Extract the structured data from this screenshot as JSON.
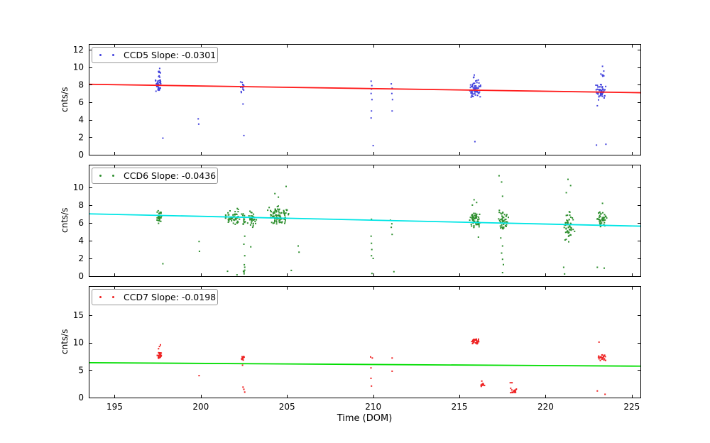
{
  "figure": {
    "background": "#ffffff",
    "axis_color": "#000000",
    "tick_label_color": "#000000"
  },
  "chart_data": {
    "type": "scatter",
    "title": "",
    "xlabel": "Time (DOM)",
    "xlim": [
      193.5,
      225.5
    ],
    "xticks": [
      195,
      200,
      205,
      210,
      215,
      220,
      225
    ],
    "grid": false,
    "legend_position": "upper left",
    "subplots": [
      {
        "name": "CCD5",
        "legend_label": "CCD5 Slope: -0.0301",
        "slope": -0.0301,
        "ylabel": "cnts/s",
        "ylim": [
          0,
          12.65
        ],
        "yticks": [
          0,
          2,
          4,
          6,
          8,
          10,
          12
        ],
        "marker_color": "#4444dd",
        "line_color": "#ff1a1a",
        "trend_line": {
          "x": [
            193.5,
            225.5
          ],
          "y": [
            8.05,
            7.09
          ]
        },
        "clusters": [
          {
            "x": 197.55,
            "xr": 0.18,
            "y": 7.9,
            "yr": 0.8,
            "n": 38
          },
          {
            "x": 197.58,
            "xr": 0.1,
            "y": 9.5,
            "yr": 0.9,
            "n": 11
          },
          {
            "x": 202.42,
            "xr": 0.14,
            "y": 7.7,
            "yr": 0.75,
            "n": 13
          },
          {
            "x": 215.93,
            "xr": 0.33,
            "y": 7.4,
            "yr": 1.0,
            "n": 62
          },
          {
            "x": 215.95,
            "xr": 0.2,
            "y": 8.8,
            "yr": 0.45,
            "n": 6
          },
          {
            "x": 223.2,
            "xr": 0.36,
            "y": 7.2,
            "yr": 1.1,
            "n": 55
          },
          {
            "x": 223.3,
            "xr": 0.16,
            "y": 9.2,
            "yr": 0.6,
            "n": 6
          }
        ],
        "outlier_points": [
          [
            197.8,
            1.9
          ],
          [
            199.85,
            4.1
          ],
          [
            199.88,
            3.5
          ],
          [
            202.45,
            5.8
          ],
          [
            202.5,
            2.2
          ],
          [
            209.88,
            8.4
          ],
          [
            209.92,
            7.9
          ],
          [
            209.9,
            7.5
          ],
          [
            209.88,
            7.0
          ],
          [
            209.93,
            6.3
          ],
          [
            209.9,
            5.0
          ],
          [
            209.88,
            4.2
          ],
          [
            210.0,
            1.05
          ],
          [
            211.05,
            8.1
          ],
          [
            211.1,
            7.6
          ],
          [
            211.08,
            7.0
          ],
          [
            211.12,
            6.3
          ],
          [
            211.1,
            5.0
          ],
          [
            215.9,
            1.5
          ],
          [
            223.3,
            10.1
          ],
          [
            222.95,
            1.1
          ],
          [
            223.5,
            1.2
          ],
          [
            223.0,
            5.6
          ]
        ]
      },
      {
        "name": "CCD6",
        "legend_label": "CCD6 Slope: -0.0436",
        "slope": -0.0436,
        "ylabel": "cnts/s",
        "ylim": [
          0,
          12.55
        ],
        "yticks": [
          0,
          2,
          4,
          6,
          8,
          10
        ],
        "marker_color": "#2f8f2f",
        "line_color": "#00e5e5",
        "trend_line": {
          "x": [
            193.5,
            225.5
          ],
          "y": [
            7.02,
            5.63
          ]
        },
        "clusters": [
          {
            "x": 197.58,
            "xr": 0.15,
            "y": 6.7,
            "yr": 1.0,
            "n": 30
          },
          {
            "x": 201.9,
            "xr": 0.5,
            "y": 6.6,
            "yr": 1.1,
            "n": 55
          },
          {
            "x": 202.5,
            "xr": 0.1,
            "y": 6.5,
            "yr": 0.9,
            "n": 12
          },
          {
            "x": 203.0,
            "xr": 0.3,
            "y": 6.4,
            "yr": 1.0,
            "n": 35
          },
          {
            "x": 204.5,
            "xr": 0.68,
            "y": 6.8,
            "yr": 1.2,
            "n": 90
          },
          {
            "x": 215.9,
            "xr": 0.36,
            "y": 6.3,
            "yr": 1.0,
            "n": 65
          },
          {
            "x": 217.55,
            "xr": 0.33,
            "y": 6.2,
            "yr": 1.3,
            "n": 48
          },
          {
            "x": 221.35,
            "xr": 0.4,
            "y": 5.6,
            "yr": 2.2,
            "n": 55
          },
          {
            "x": 223.25,
            "xr": 0.3,
            "y": 6.4,
            "yr": 0.95,
            "n": 48
          },
          {
            "x": 202.52,
            "xr": 0.07,
            "y": 0.7,
            "yr": 0.6,
            "n": 7
          }
        ],
        "outlier_points": [
          [
            197.8,
            1.4
          ],
          [
            199.9,
            3.9
          ],
          [
            199.92,
            2.8
          ],
          [
            202.55,
            4.5
          ],
          [
            202.5,
            3.6
          ],
          [
            202.55,
            2.3
          ],
          [
            202.9,
            3.3
          ],
          [
            201.55,
            0.55
          ],
          [
            202.1,
            0.15
          ],
          [
            204.95,
            10.1
          ],
          [
            204.5,
            8.9
          ],
          [
            204.3,
            9.3
          ],
          [
            205.65,
            3.4
          ],
          [
            205.7,
            2.7
          ],
          [
            205.25,
            0.65
          ],
          [
            209.9,
            6.4
          ],
          [
            209.88,
            4.5
          ],
          [
            209.9,
            3.7
          ],
          [
            209.92,
            3.0
          ],
          [
            209.9,
            2.3
          ],
          [
            209.93,
            0.3
          ],
          [
            210.0,
            2.0
          ],
          [
            211.0,
            6.3
          ],
          [
            211.08,
            5.9
          ],
          [
            211.05,
            5.5
          ],
          [
            211.1,
            4.7
          ],
          [
            211.2,
            0.5
          ],
          [
            216.0,
            8.3
          ],
          [
            215.75,
            8.0
          ],
          [
            215.85,
            8.6
          ],
          [
            216.1,
            4.4
          ],
          [
            217.3,
            11.3
          ],
          [
            217.45,
            10.6
          ],
          [
            217.5,
            9.0
          ],
          [
            217.4,
            4.3
          ],
          [
            217.5,
            3.4
          ],
          [
            217.45,
            2.6
          ],
          [
            217.5,
            1.9
          ],
          [
            217.55,
            1.3
          ],
          [
            217.5,
            0.4
          ],
          [
            221.3,
            10.9
          ],
          [
            221.45,
            10.2
          ],
          [
            221.2,
            9.4
          ],
          [
            221.05,
            1.0
          ],
          [
            221.1,
            0.25
          ],
          [
            223.3,
            8.2
          ],
          [
            223.0,
            1.0
          ],
          [
            223.4,
            0.9
          ]
        ]
      },
      {
        "name": "CCD7",
        "legend_label": "CCD7 Slope: -0.0198",
        "slope": -0.0198,
        "ylabel": "cnts/s",
        "ylim": [
          0,
          20.3
        ],
        "yticks": [
          0,
          5,
          10,
          15
        ],
        "marker_color": "#ee2222",
        "line_color": "#00dd00",
        "trend_line": {
          "x": [
            193.5,
            225.5
          ],
          "y": [
            6.35,
            5.72
          ]
        },
        "clusters": [
          {
            "x": 197.6,
            "xr": 0.14,
            "y": 7.6,
            "yr": 0.65,
            "n": 26
          },
          {
            "x": 202.45,
            "xr": 0.11,
            "y": 7.25,
            "yr": 0.55,
            "n": 13
          },
          {
            "x": 215.95,
            "xr": 0.28,
            "y": 10.25,
            "yr": 0.5,
            "n": 34
          },
          {
            "x": 216.35,
            "xr": 0.11,
            "y": 2.3,
            "yr": 0.5,
            "n": 14
          },
          {
            "x": 218.15,
            "xr": 0.26,
            "y": 1.2,
            "yr": 0.65,
            "n": 20
          },
          {
            "x": 223.3,
            "xr": 0.28,
            "y": 7.3,
            "yr": 0.65,
            "n": 24
          }
        ],
        "outlier_points": [
          [
            197.6,
            9.3
          ],
          [
            197.66,
            9.6
          ],
          [
            197.55,
            8.9
          ],
          [
            199.9,
            4.0
          ],
          [
            202.42,
            5.9
          ],
          [
            202.45,
            1.9
          ],
          [
            202.5,
            1.5
          ],
          [
            202.55,
            1.0
          ],
          [
            209.85,
            7.4
          ],
          [
            209.95,
            7.2
          ],
          [
            209.87,
            5.4
          ],
          [
            209.87,
            3.5
          ],
          [
            209.9,
            2.1
          ],
          [
            211.1,
            7.2
          ],
          [
            211.1,
            4.8
          ],
          [
            217.95,
            2.7
          ],
          [
            218.05,
            2.7
          ],
          [
            216.3,
            3.0
          ],
          [
            223.1,
            10.1
          ],
          [
            223.0,
            1.2
          ],
          [
            223.45,
            0.6
          ]
        ]
      }
    ]
  }
}
